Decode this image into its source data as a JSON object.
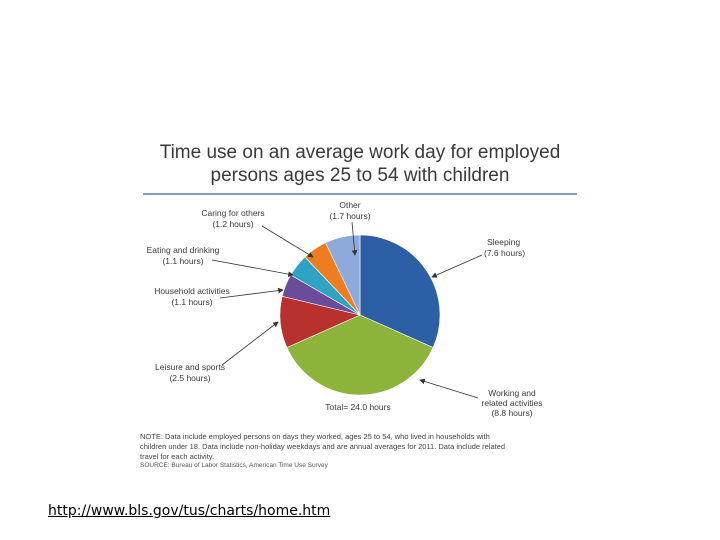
{
  "slide": {
    "link_text": "http://www.bls.gov/tus/charts/home.htm"
  },
  "chart_data": {
    "type": "pie",
    "title_line1": "Time use on an average work day for employed",
    "title_line2": "persons ages 25 to 54 with children",
    "total_label": "Total= 24.0 hours",
    "slices": [
      {
        "name": "Sleeping",
        "value": 7.6,
        "label": "Sleeping",
        "value_label": "(7.6 hours)",
        "color": "#2d5fa6"
      },
      {
        "name": "Working and related activities",
        "value": 8.8,
        "label": "Working and",
        "label2": "related activities",
        "value_label": "(8.8 hours)",
        "color": "#8db33a"
      },
      {
        "name": "Leisure and sports",
        "value": 2.5,
        "label": "Leisure and sports",
        "value_label": "(2.5 hours)",
        "color": "#b8312f"
      },
      {
        "name": "Household activities",
        "value": 1.1,
        "label": "Household activities",
        "value_label": "(1.1 hours)",
        "color": "#6b4c9a"
      },
      {
        "name": "Eating and drinking",
        "value": 1.1,
        "label": "Eating and drinking",
        "value_label": "(1.1 hours)",
        "color": "#2fa3c4"
      },
      {
        "name": "Caring for others",
        "value": 1.2,
        "label": "Caring for others",
        "value_label": "(1.2 hours)",
        "color": "#ee7d22"
      },
      {
        "name": "Other",
        "value": 1.7,
        "label": "Other",
        "value_label": "(1.7 hours)",
        "color": "#8eaadb"
      }
    ],
    "note_line1": "NOTE: Data include employed persons on days they worked, ages 25 to 54, who lived in households with",
    "note_line2": "children under 18. Data include non-holiday weekdays and are annual averages for 2011. Data include related",
    "note_line3": "travel for each activity.",
    "source": "SOURCE: Bureau of Labor Statistics, American Time Use Survey"
  }
}
